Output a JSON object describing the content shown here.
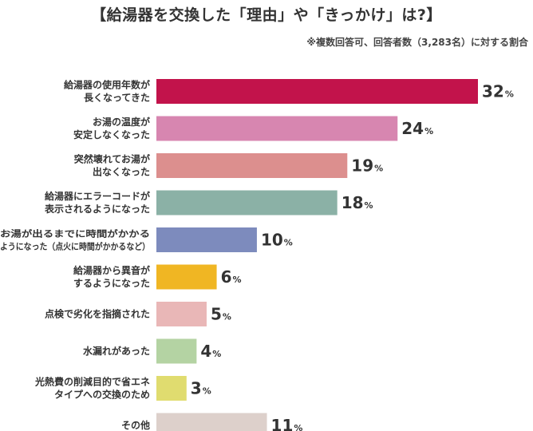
{
  "title": "【給湯器を交換した「理由」や「きっかけ」は?】",
  "note": "※複数回答可、回答者数（3,283名）に対する割合",
  "chart_data": {
    "type": "bar",
    "orientation": "horizontal",
    "unit": "%",
    "categories": [
      [
        "給湯器の使用年数が",
        "長くなってきた"
      ],
      [
        "お湯の温度が",
        "安定しなくなった"
      ],
      [
        "突然壊れてお湯が",
        "出なくなった"
      ],
      [
        "給湯器にエラーコードが",
        "表示されるようになった"
      ],
      [
        "お湯が出るまでに時間がかかる",
        "ようになった（点火に時間がかかるなど）"
      ],
      [
        "給湯器から異音が",
        "するようになった"
      ],
      [
        "点検で劣化を指摘された"
      ],
      [
        "水漏れがあった"
      ],
      [
        "光熱費の削減目的で省エネ",
        "タイプへの交換のため"
      ],
      [
        "その他"
      ]
    ],
    "values": [
      32,
      24,
      19,
      18,
      10,
      6,
      5,
      4,
      3,
      11
    ],
    "colors": [
      "#c2134b",
      "#d786b0",
      "#dc8f8e",
      "#8bb1a6",
      "#7d8bbd",
      "#f0b623",
      "#e9b7b7",
      "#b4d3a3",
      "#e0dc6f",
      "#ddd0cb"
    ],
    "xlim": [
      0,
      32
    ]
  }
}
